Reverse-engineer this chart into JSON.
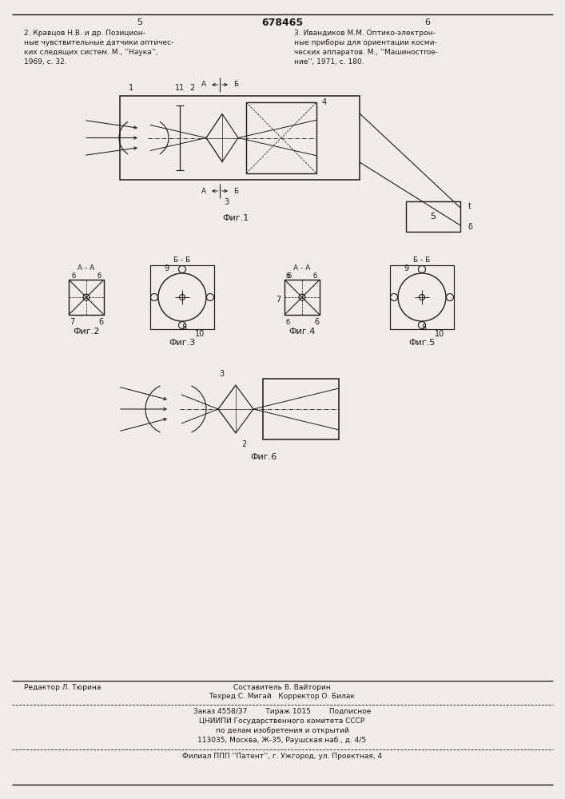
{
  "bg_color": "#f0ede8",
  "line_color": "#1a1a1a",
  "title_text": "678465",
  "page_left_num": "5",
  "page_right_num": "6",
  "ref_left": "2. Кравцов Н.В. и др. Позицион-\nные чувствительные датчики оптичес-\nких следящих систем. М., ''Наука'',\n1969, с. 32.",
  "ref_right": "3. Ивандиков М.М. Оптико-электрон-\nные приборы для ориентации косми-\nческих аппаратов. М., ''Машиностroe-\nние'', 1971, с. 180.",
  "fig1_caption": "Фиг.1",
  "fig2_caption": "Фиг.2",
  "fig3_caption": "Фиг.3",
  "fig4_caption": "Фиг.4",
  "fig5_caption": "Фиг.5",
  "fig6_caption": "Фиг.6",
  "footer_editor": "Редактор Л. Тюрина",
  "footer_composer": "Составитель В. Вайторин",
  "footer_techred": "Техред С. Мигай   Корректор О. Билак",
  "footer_order": "Заказ 4558/37        Тираж 1015        Подписное",
  "footer_org": "ЦНИИПИ Государственного комитета СССР\nпо делам изобретения и открытий\n113035, Москва, Ж-35, Раушская наб., д. 4/5",
  "footer_branch": "Филиал ППП ''Патент'', г. Ужгород, ул. Проектная, 4"
}
